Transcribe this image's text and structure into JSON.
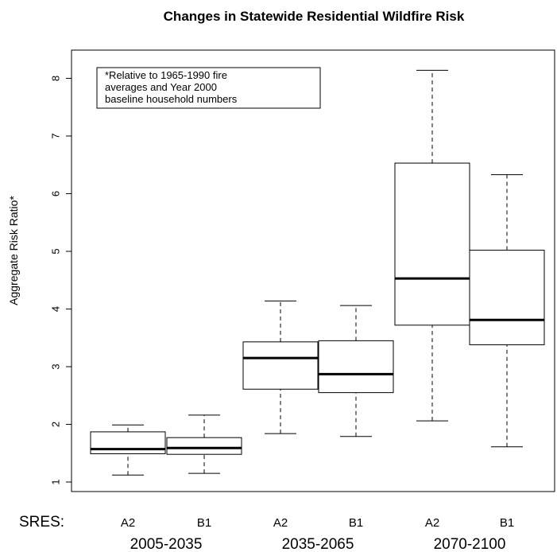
{
  "chart_data": {
    "type": "boxplot",
    "title": "Changes in Statewide Residential Wildfire Risk",
    "ylabel": "Aggregate Risk Ratio*",
    "ylim": [
      0.8,
      8.6
    ],
    "yticks": [
      1,
      2,
      3,
      4,
      5,
      6,
      7,
      8
    ],
    "grid": false,
    "legend": "none",
    "sres_label": "SRES:",
    "note": [
      "*Relative to 1965-1990 fire",
      "averages and Year 2000",
      "baseline household numbers"
    ],
    "periods": [
      "2005-2035",
      "2035-2065",
      "2070-2100"
    ],
    "boxes": [
      {
        "category": "A2",
        "period": "2005-2035",
        "min": 1.12,
        "q1": 1.49,
        "median": 1.57,
        "q3": 1.87,
        "max": 1.99
      },
      {
        "category": "B1",
        "period": "2005-2035",
        "min": 1.15,
        "q1": 1.48,
        "median": 1.59,
        "q3": 1.77,
        "max": 2.16
      },
      {
        "category": "A2",
        "period": "2035-2065",
        "min": 1.84,
        "q1": 2.61,
        "median": 3.15,
        "q3": 3.43,
        "max": 4.14
      },
      {
        "category": "B1",
        "period": "2035-2065",
        "min": 1.79,
        "q1": 2.55,
        "median": 2.87,
        "q3": 3.45,
        "max": 4.06
      },
      {
        "category": "A2",
        "period": "2070-2100",
        "min": 2.06,
        "q1": 3.72,
        "median": 4.53,
        "q3": 6.53,
        "max": 8.14
      },
      {
        "category": "B1",
        "period": "2070-2100",
        "min": 1.61,
        "q1": 3.38,
        "median": 3.81,
        "q3": 5.02,
        "max": 6.33
      }
    ]
  }
}
